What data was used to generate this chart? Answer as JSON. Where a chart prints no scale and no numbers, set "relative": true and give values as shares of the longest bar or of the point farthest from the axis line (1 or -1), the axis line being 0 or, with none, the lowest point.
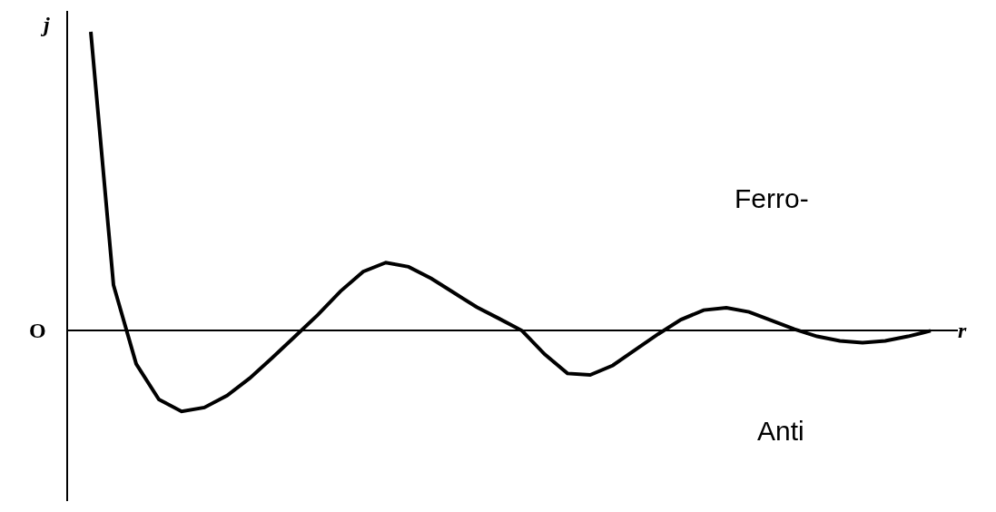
{
  "chart_data": {
    "type": "line",
    "relative": true,
    "xlabel": "r",
    "ylabel": "j",
    "color": "#000000",
    "marker": "none",
    "categories": [
      null,
      null,
      null,
      null,
      null,
      null,
      null,
      null,
      null,
      null,
      null,
      null,
      null,
      null,
      null,
      null,
      null,
      null,
      null,
      null,
      null,
      null,
      null,
      null,
      null,
      null,
      null,
      null,
      null,
      null,
      null,
      null,
      null,
      null,
      null,
      null,
      null,
      null
    ],
    "values": [
      1.0,
      0.153,
      -0.111,
      -0.23,
      -0.27,
      -0.257,
      -0.217,
      -0.159,
      -0.09,
      -0.019,
      0.053,
      0.132,
      0.198,
      0.228,
      0.214,
      0.175,
      0.127,
      0.079,
      0.04,
      0,
      -0.079,
      -0.143,
      -0.148,
      -0.116,
      -0.063,
      -0.011,
      0.037,
      0.069,
      0.077,
      0.063,
      0.034,
      0.005,
      -0.019,
      -0.034,
      -0.04,
      -0.034,
      -0.019,
      0
    ],
    "annotations": [
      "O",
      "Ferro-",
      "Anti"
    ]
  }
}
